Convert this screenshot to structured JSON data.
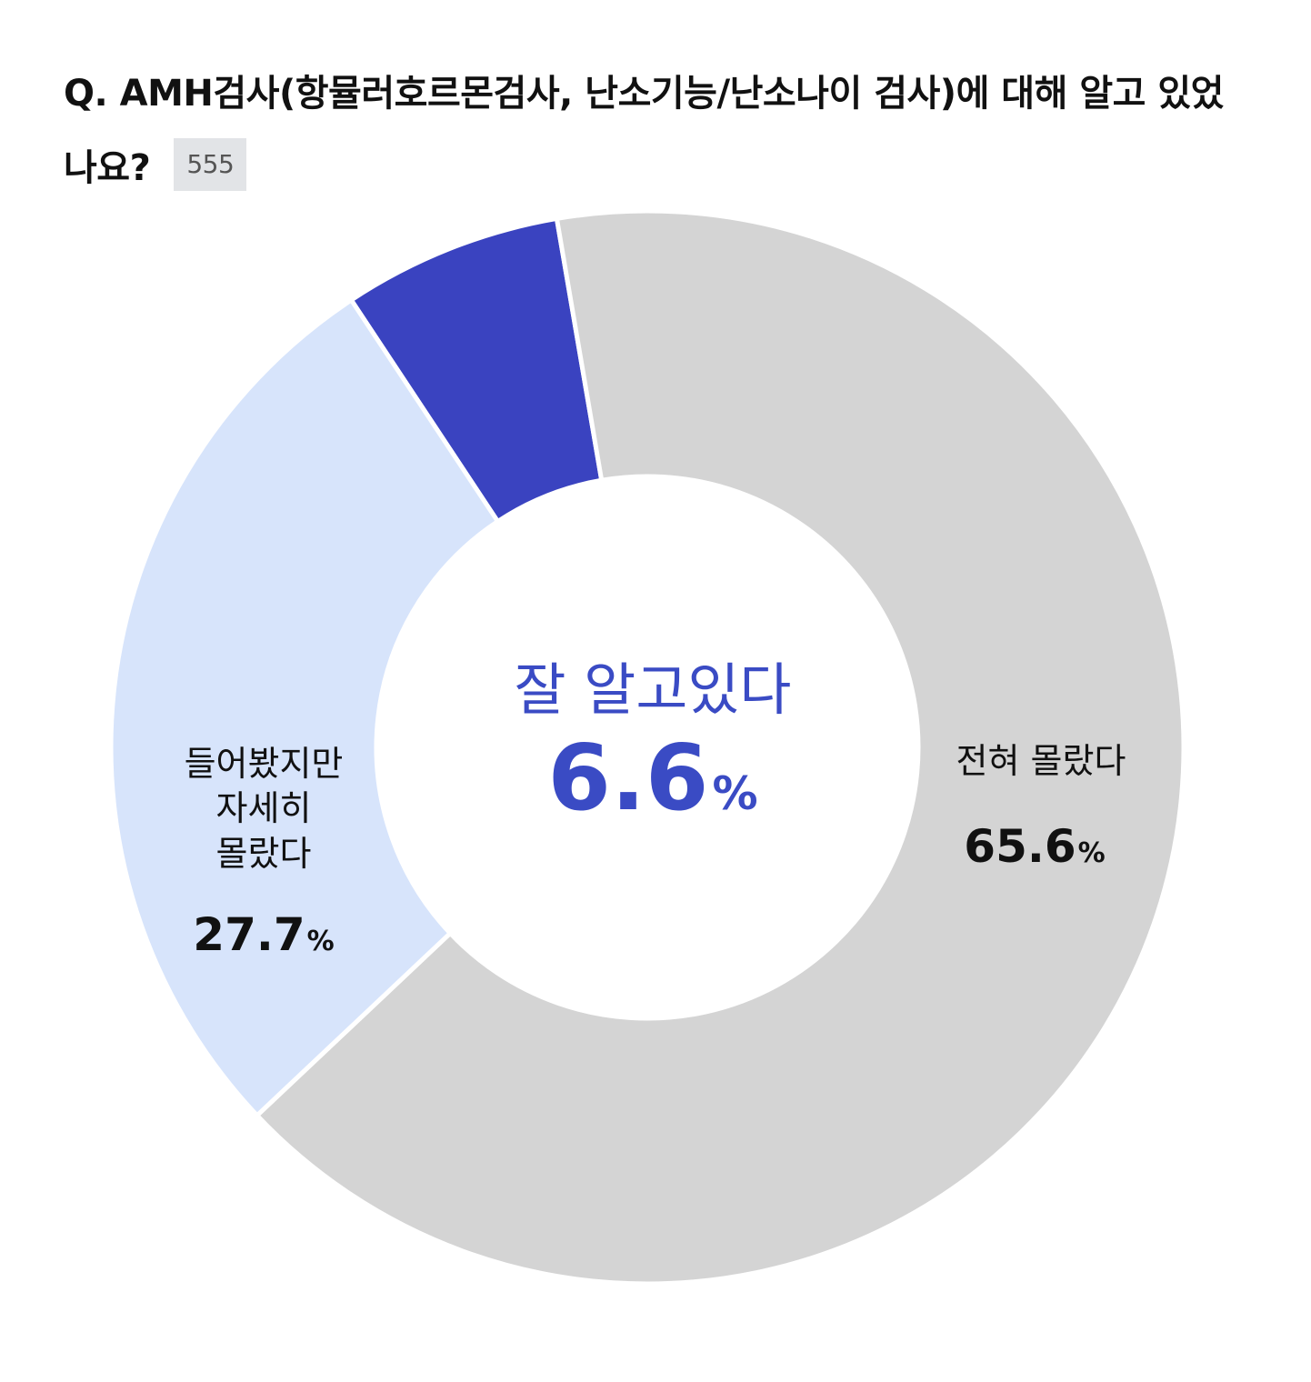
{
  "question": {
    "text": "Q. AMH검사(항뮬러호르몬검사, 난소기능/난소나이 검사)에 대해 알고 있었나요?",
    "respondents": "555"
  },
  "colors": {
    "well_known": "#3a43c0",
    "heard_not_detail": "#d7e4fb",
    "not_known": "#d4d4d4",
    "center_text": "#3a4bc4",
    "label_text": "#111111"
  },
  "chart_data": {
    "type": "pie",
    "donut": true,
    "categories": [
      "잘 알고있다",
      "전혀 몰랐다",
      "들어봤지만 자세히 몰랐다"
    ],
    "values": [
      6.6,
      65.6,
      27.7
    ],
    "unit": "%",
    "title": "",
    "center": {
      "label": "잘 알고있다",
      "value": "6.6",
      "unit": "%"
    },
    "labels": [
      {
        "lines": [
          "전혀 몰랐다"
        ],
        "value": "65.6",
        "unit": "%"
      },
      {
        "lines": [
          "들어봤지만",
          "자세히",
          "몰랐다"
        ],
        "value": "27.7",
        "unit": "%"
      }
    ]
  }
}
